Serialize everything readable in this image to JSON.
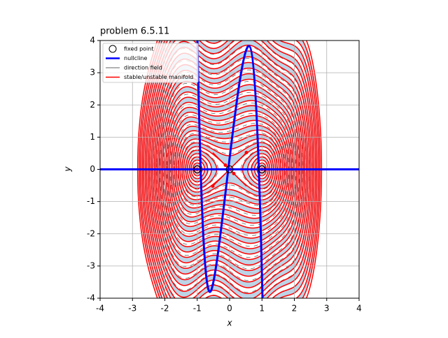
{
  "chart_data": {
    "type": "phase_portrait",
    "title": "problem 6.5.11",
    "xlabel": "x",
    "ylabel": "y",
    "xlim": [
      -4,
      4
    ],
    "ylim": [
      -4,
      4
    ],
    "xticks": [
      -4,
      -3,
      -2,
      -1,
      0,
      1,
      2,
      3,
      4
    ],
    "yticks": [
      -4,
      -3,
      -2,
      -1,
      0,
      1,
      2,
      3,
      4
    ],
    "grid": true,
    "legend": "upper left",
    "legend_entries": [
      "fixed point",
      "nullcline",
      "direction field",
      "stable/unstable manifold"
    ],
    "fixed_points": {
      "x": [
        -1,
        0,
        1
      ],
      "y": [
        0,
        0,
        0
      ]
    },
    "colors": {
      "nullcline": "#0000ff",
      "manifold": "#ff0000",
      "field": "#666666",
      "shade": "#bcd4e6"
    }
  }
}
